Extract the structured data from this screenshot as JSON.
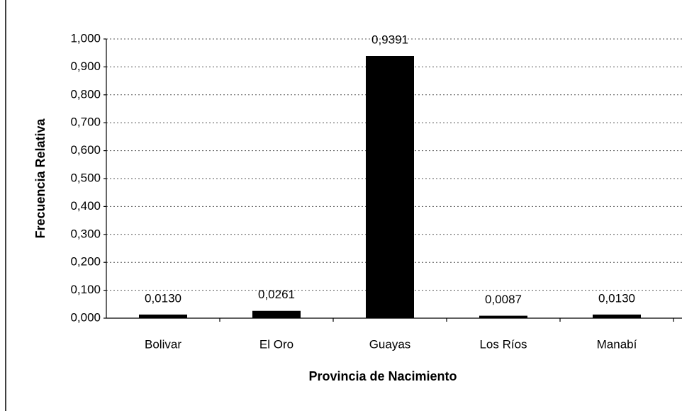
{
  "chart_data": {
    "type": "bar",
    "xlabel": "Provincia de Nacimiento",
    "ylabel": "Frecuencia Relativa",
    "categories": [
      "Bolivar",
      "El Oro",
      "Guayas",
      "Los Ríos",
      "Manabí"
    ],
    "values": [
      0.013,
      0.0261,
      0.9391,
      0.0087,
      0.013
    ],
    "value_labels": [
      "0,0130",
      "0,0261",
      "0,9391",
      "0,0087",
      "0,0130"
    ],
    "color": "#000000",
    "ylim": [
      0,
      1
    ],
    "yticks": [
      {
        "value": 0,
        "label": "0,000"
      },
      {
        "value": 0.1,
        "label": "0,100"
      },
      {
        "value": 0.2,
        "label": "0,200"
      },
      {
        "value": 0.3,
        "label": "0,300"
      },
      {
        "value": 0.4,
        "label": "0,400"
      },
      {
        "value": 0.5,
        "label": "0,500"
      },
      {
        "value": 0.6,
        "label": "0,600"
      },
      {
        "value": 0.7,
        "label": "0,700"
      },
      {
        "value": 0.8,
        "label": "0,800"
      },
      {
        "value": 0.9,
        "label": "0,900"
      },
      {
        "value": 1,
        "label": "1,000"
      }
    ],
    "grid": true
  }
}
